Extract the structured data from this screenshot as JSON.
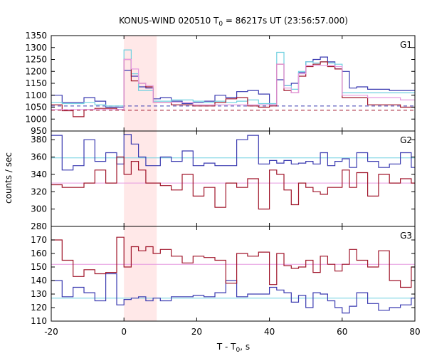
{
  "chart_data": {
    "type": "line",
    "title": {
      "pre": "KONUS-WIND 020510 T",
      "sub": "0",
      "post": " = 86217s UT (23:56:57.000)"
    },
    "xlabel": {
      "pre": "T - T",
      "sub": "0",
      "post": ", s"
    },
    "ylabel": "counts / sec",
    "xlim": [
      -20,
      80
    ],
    "x_ticks": [
      "-20",
      "0",
      "20",
      "40",
      "60",
      "80"
    ],
    "x_tick_values": [
      -20,
      0,
      20,
      40,
      60,
      80
    ],
    "bin_edges": [
      -20,
      -17,
      -14,
      -11,
      -8,
      -5,
      -2,
      0,
      2,
      4,
      6,
      8,
      10,
      13,
      16,
      19,
      22,
      25,
      28,
      31,
      34,
      37,
      40,
      42,
      44,
      46,
      48,
      50,
      52,
      54,
      56,
      58,
      60,
      62,
      64,
      67,
      70,
      73,
      76,
      79,
      80
    ],
    "highlight_interval": [
      0,
      9
    ],
    "highlight_color": "#ffe8e8",
    "grid": false,
    "legend": "none",
    "panels": [
      {
        "label": "G1",
        "ylim": [
          950,
          1350
        ],
        "y_ticks": [
          950,
          1000,
          1050,
          1100,
          1150,
          1200,
          1250,
          1300,
          1350
        ],
        "y_tick_labels": [
          "950",
          "1000",
          "1050",
          "1100",
          "1150",
          "1200",
          "1250",
          "1300",
          "1350"
        ],
        "series": [
          {
            "color": "#3a3ab0",
            "values": [
              1100,
              1070,
              1070,
              1090,
              1075,
              1050,
              1050,
              1205,
              1180,
              1135,
              1130,
              1085,
              1090,
              1075,
              1065,
              1070,
              1075,
              1100,
              1090,
              1115,
              1120,
              1105,
              1060,
              1165,
              1140,
              1150,
              1195,
              1240,
              1250,
              1260,
              1240,
              1210,
              1200,
              1130,
              1135,
              1125,
              1125,
              1120,
              1120,
              1120
            ]
          },
          {
            "color": "#6fd0e0",
            "values": [
              1070,
              1065,
              1065,
              1070,
              1060,
              1055,
              1055,
              1290,
              1190,
              1120,
              1120,
              1075,
              1075,
              1080,
              1080,
              1075,
              1070,
              1075,
              1070,
              1075,
              1080,
              1065,
              1065,
              1280,
              1140,
              1125,
              1200,
              1240,
              1235,
              1240,
              1235,
              1230,
              1110,
              1110,
              1110,
              1110,
              1110,
              1110,
              1110,
              1110
            ]
          },
          {
            "color": "#a0152a",
            "values": [
              1060,
              1035,
              1010,
              1040,
              1045,
              1045,
              1040,
              1250,
              1160,
              1150,
              1135,
              1070,
              1070,
              1060,
              1060,
              1055,
              1055,
              1070,
              1085,
              1090,
              1055,
              1050,
              1055,
              1230,
              1120,
              1110,
              1180,
              1220,
              1230,
              1240,
              1220,
              1210,
              1090,
              1090,
              1090,
              1060,
              1060,
              1060,
              1050,
              1050
            ]
          },
          {
            "color": "#e59ae0",
            "values": [
              1040,
              1040,
              1040,
              1040,
              1040,
              1040,
              1040,
              1250,
              1210,
              1150,
              1140,
              1070,
              1070,
              1070,
              1070,
              1060,
              1060,
              1060,
              1060,
              1060,
              1060,
              1060,
              1060,
              1230,
              1130,
              1110,
              1190,
              1225,
              1225,
              1225,
              1225,
              1220,
              1100,
              1100,
              1100,
              1090,
              1090,
              1090,
              1080,
              1080
            ]
          }
        ],
        "reference_lines": [
          {
            "y": 1055,
            "color": "#3a3ab0",
            "dash": true
          },
          {
            "y": 1037,
            "color": "#a0152a",
            "dash": true
          }
        ]
      },
      {
        "label": "G2",
        "ylim": [
          280,
          390
        ],
        "y_ticks": [
          280,
          300,
          320,
          340,
          360,
          380
        ],
        "y_tick_labels": [
          "280",
          "300",
          "320",
          "340",
          "360",
          "380"
        ],
        "series": [
          {
            "color": "#3a3ab0",
            "values": [
              385,
              345,
              350,
              380,
              355,
              365,
              352,
              386,
              375,
              360,
              350,
              350,
              360,
              355,
              367,
              350,
              353,
              350,
              350,
              380,
              385,
              352,
              356,
              353,
              356,
              352,
              353,
              355,
              352,
              365,
              350,
              355,
              358,
              348,
              365,
              355,
              348,
              352,
              365,
              348
            ]
          },
          {
            "color": "#a0152a",
            "values": [
              328,
              325,
              325,
              330,
              345,
              330,
              360,
              340,
              355,
              345,
              330,
              330,
              327,
              322,
              340,
              315,
              325,
              302,
              330,
              325,
              335,
              300,
              345,
              340,
              322,
              305,
              330,
              325,
              320,
              317,
              325,
              325,
              345,
              325,
              342,
              315,
              340,
              330,
              335,
              330
            ]
          }
        ],
        "reference_lines": [
          {
            "y": 359,
            "color": "#6fd0e0",
            "dash": false
          },
          {
            "y": 330,
            "color": "#e59ae0",
            "dash": false
          }
        ]
      },
      {
        "label": "G3",
        "ylim": [
          110,
          180
        ],
        "y_ticks": [
          110,
          120,
          130,
          140,
          150,
          160,
          170
        ],
        "y_tick_labels": [
          "110",
          "120",
          "130",
          "140",
          "150",
          "160",
          "170"
        ],
        "series": [
          {
            "color": "#3a3ab0",
            "values": [
              140,
              128,
              135,
              131,
              125,
              145,
              122,
              126,
              127,
              128,
              125,
              127,
              125,
              128,
              128,
              129,
              128,
              131,
              140,
              128,
              130,
              130,
              135,
              133,
              131,
              124,
              129,
              120,
              131,
              130,
              125,
              120,
              116,
              121,
              131,
              123,
              118,
              120,
              122,
              127
            ]
          },
          {
            "color": "#a0152a",
            "values": [
              170,
              155,
              143,
              148,
              145,
              146,
              172,
              150,
              165,
              162,
              165,
              160,
              163,
              158,
              153,
              158,
              157,
              155,
              138,
              160,
              158,
              161,
              137,
              160,
              151,
              149,
              150,
              155,
              146,
              158,
              152,
              147,
              152,
              163,
              155,
              150,
              162,
              140,
              135,
              150
            ]
          }
        ],
        "reference_lines": [
          {
            "y": 152,
            "color": "#e59ae0",
            "dash": false
          },
          {
            "y": 127,
            "color": "#6fd0e0",
            "dash": false
          }
        ]
      }
    ]
  }
}
